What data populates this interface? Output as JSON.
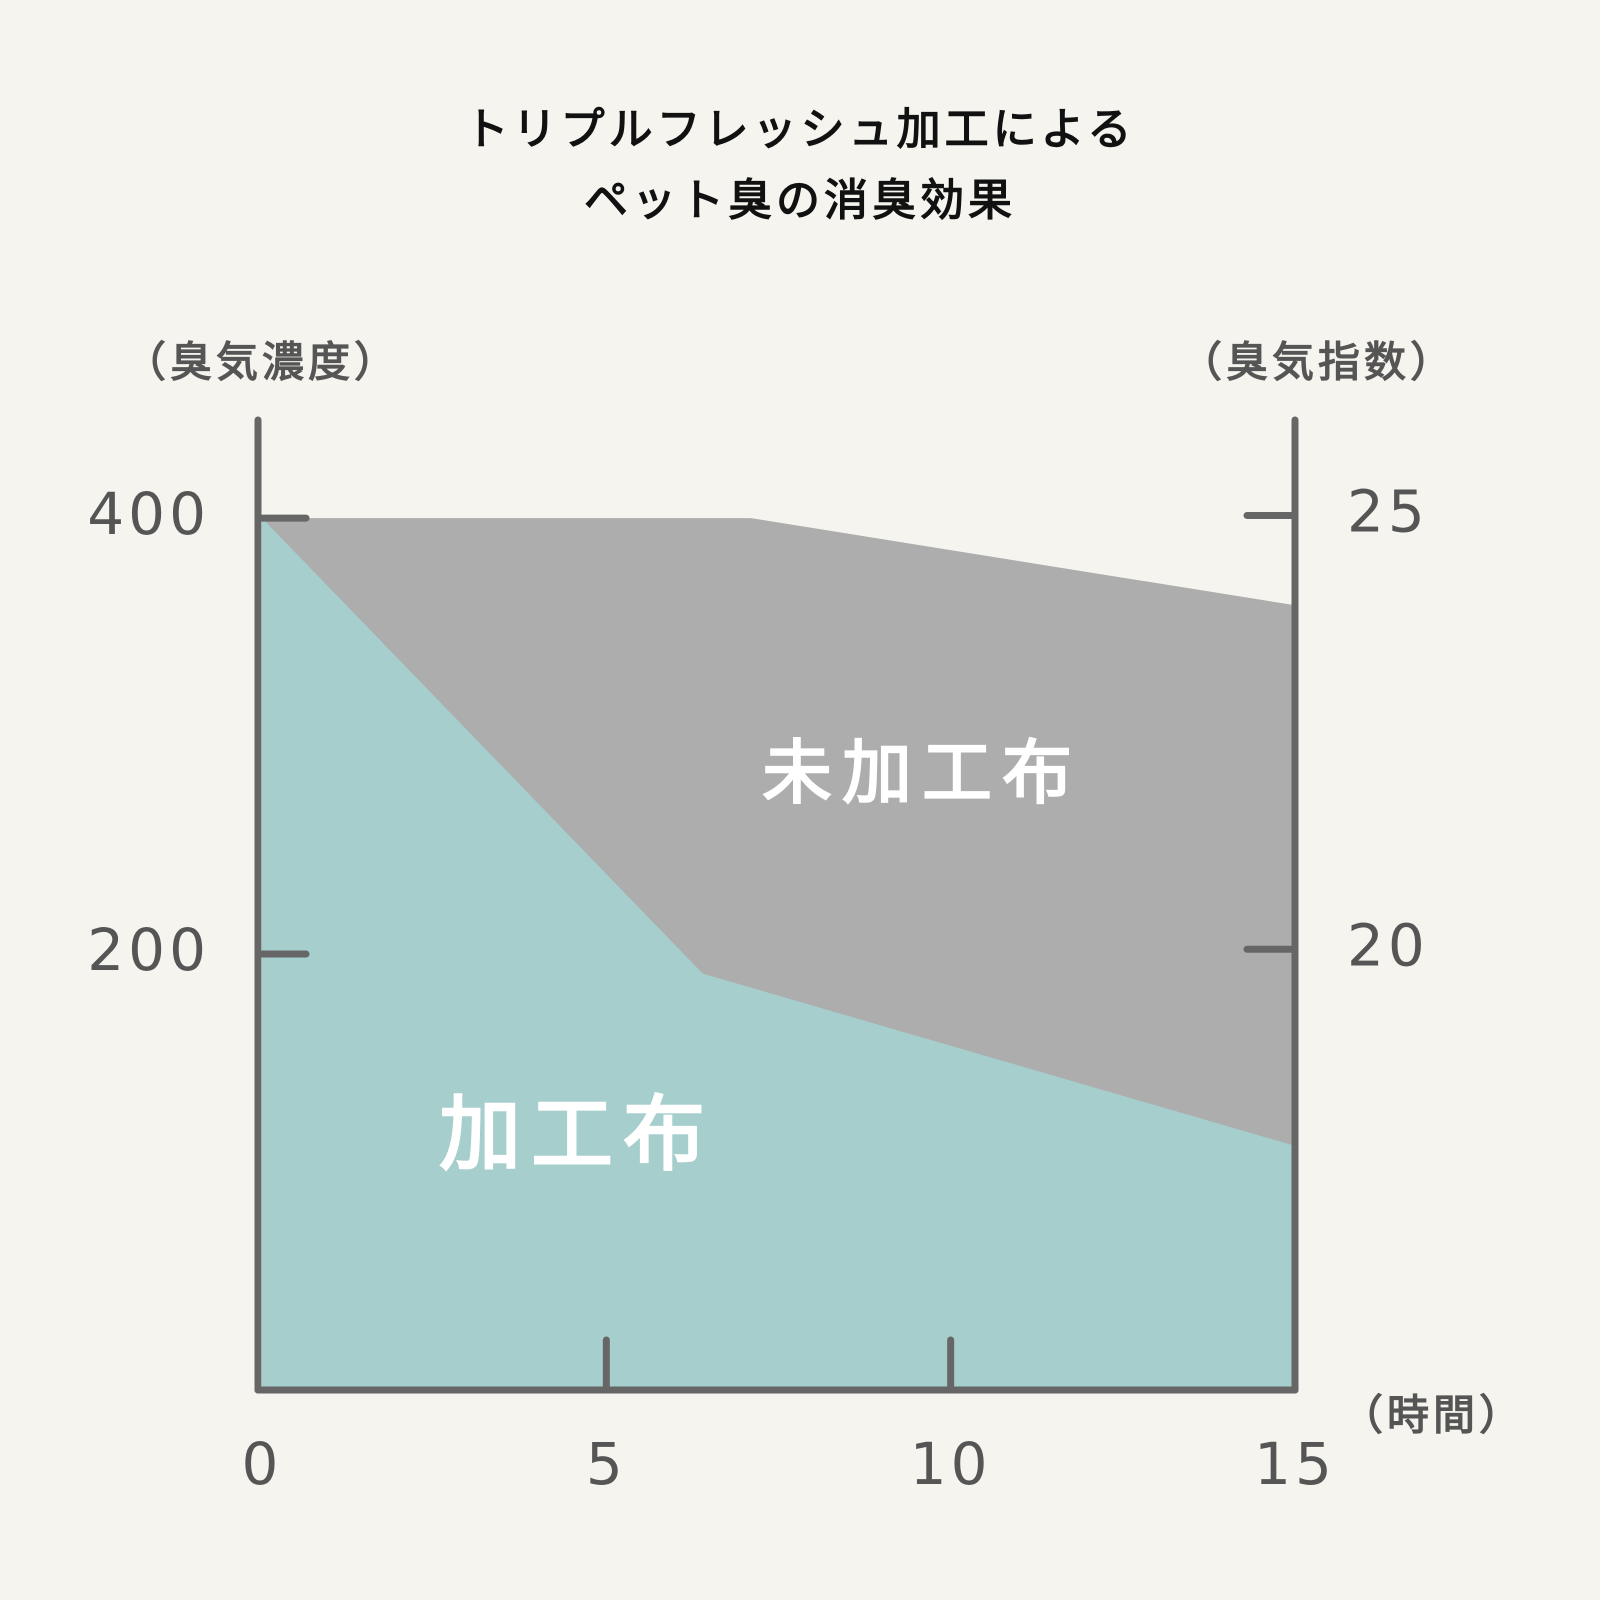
{
  "chart_data": {
    "type": "area",
    "title": [
      "トリプルフレッシュ加工による",
      "ペット臭の消臭効果"
    ],
    "ylabel": "（臭気濃度）",
    "y2label": "（臭気指数）",
    "xlabel": "（時間）",
    "xlim": [
      0,
      15
    ],
    "xticks": [
      0,
      5,
      10,
      15
    ],
    "ylim": [
      0,
      445
    ],
    "yticks": [
      200,
      400
    ],
    "y2lim": [
      14.92,
      26.1
    ],
    "y2ticks": [
      20,
      25
    ],
    "series": [
      {
        "name": "未加工布",
        "color": "#adadad",
        "x": [
          0,
          7.1,
          15
        ],
        "values": [
          400,
          400,
          360
        ]
      },
      {
        "name": "加工布",
        "color": "#a5cecd",
        "x": [
          0,
          6.4,
          15
        ],
        "values": [
          400,
          191,
          112
        ]
      }
    ]
  }
}
